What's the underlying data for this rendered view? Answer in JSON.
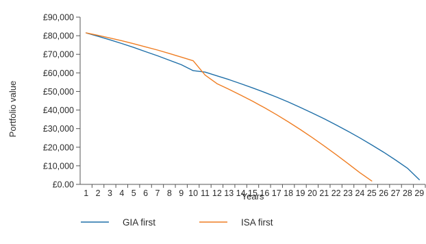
{
  "chart_data": {
    "type": "line",
    "xlabel": "Years",
    "ylabel": "Portfolio value",
    "x": [
      1,
      2,
      3,
      4,
      5,
      6,
      7,
      8,
      9,
      10,
      11,
      12,
      13,
      14,
      15,
      16,
      17,
      18,
      19,
      20,
      21,
      22,
      23,
      24,
      25,
      26,
      27,
      28,
      29
    ],
    "x_tick_labels": [
      "1",
      "2",
      "3",
      "4",
      "5",
      "6",
      "7",
      "8",
      "9",
      "10",
      "11",
      "12",
      "13",
      "14",
      "15",
      "16",
      "17",
      "18",
      "19",
      "20",
      "21",
      "22",
      "23",
      "24",
      "25",
      "26",
      "27",
      "28",
      "29"
    ],
    "ylim": [
      0,
      90000
    ],
    "y_ticks": [
      0,
      10000,
      20000,
      30000,
      40000,
      50000,
      60000,
      70000,
      80000,
      90000
    ],
    "y_tick_labels": [
      "£0.00",
      "£10,000",
      "£20,000",
      "£30,000",
      "£40,000",
      "£50,000",
      "£60,000",
      "£70,000",
      "£80,000",
      "£90,000"
    ],
    "grid": false,
    "legend_position": "bottom",
    "series": [
      {
        "name": "GIA first",
        "color": "#1f6fa8",
        "x": [
          1,
          2,
          3,
          4,
          5,
          6,
          7,
          8,
          9,
          10,
          11,
          12,
          13,
          14,
          15,
          16,
          17,
          18,
          19,
          20,
          21,
          22,
          23,
          24,
          25,
          26,
          27,
          28,
          29
        ],
        "values": [
          81500,
          79700,
          77800,
          75800,
          73700,
          71400,
          69200,
          66800,
          64400,
          61200,
          60400,
          58400,
          56400,
          54200,
          51900,
          49500,
          47000,
          44300,
          41400,
          38400,
          35300,
          32000,
          28600,
          25000,
          21200,
          17300,
          13100,
          8700,
          2500
        ]
      },
      {
        "name": "ISA first",
        "color": "#ef7d22",
        "x": [
          1,
          2,
          3,
          4,
          5,
          6,
          7,
          8,
          9,
          10,
          11,
          12,
          13,
          14,
          15,
          16,
          17,
          18,
          19,
          20,
          21,
          22,
          23,
          24,
          25
        ],
        "values": [
          81500,
          80200,
          78800,
          77300,
          75700,
          74000,
          72300,
          70400,
          68500,
          66500,
          58800,
          54200,
          51200,
          48000,
          44700,
          41200,
          37500,
          33600,
          29500,
          25200,
          20700,
          16000,
          11200,
          6300,
          1800
        ]
      }
    ]
  }
}
